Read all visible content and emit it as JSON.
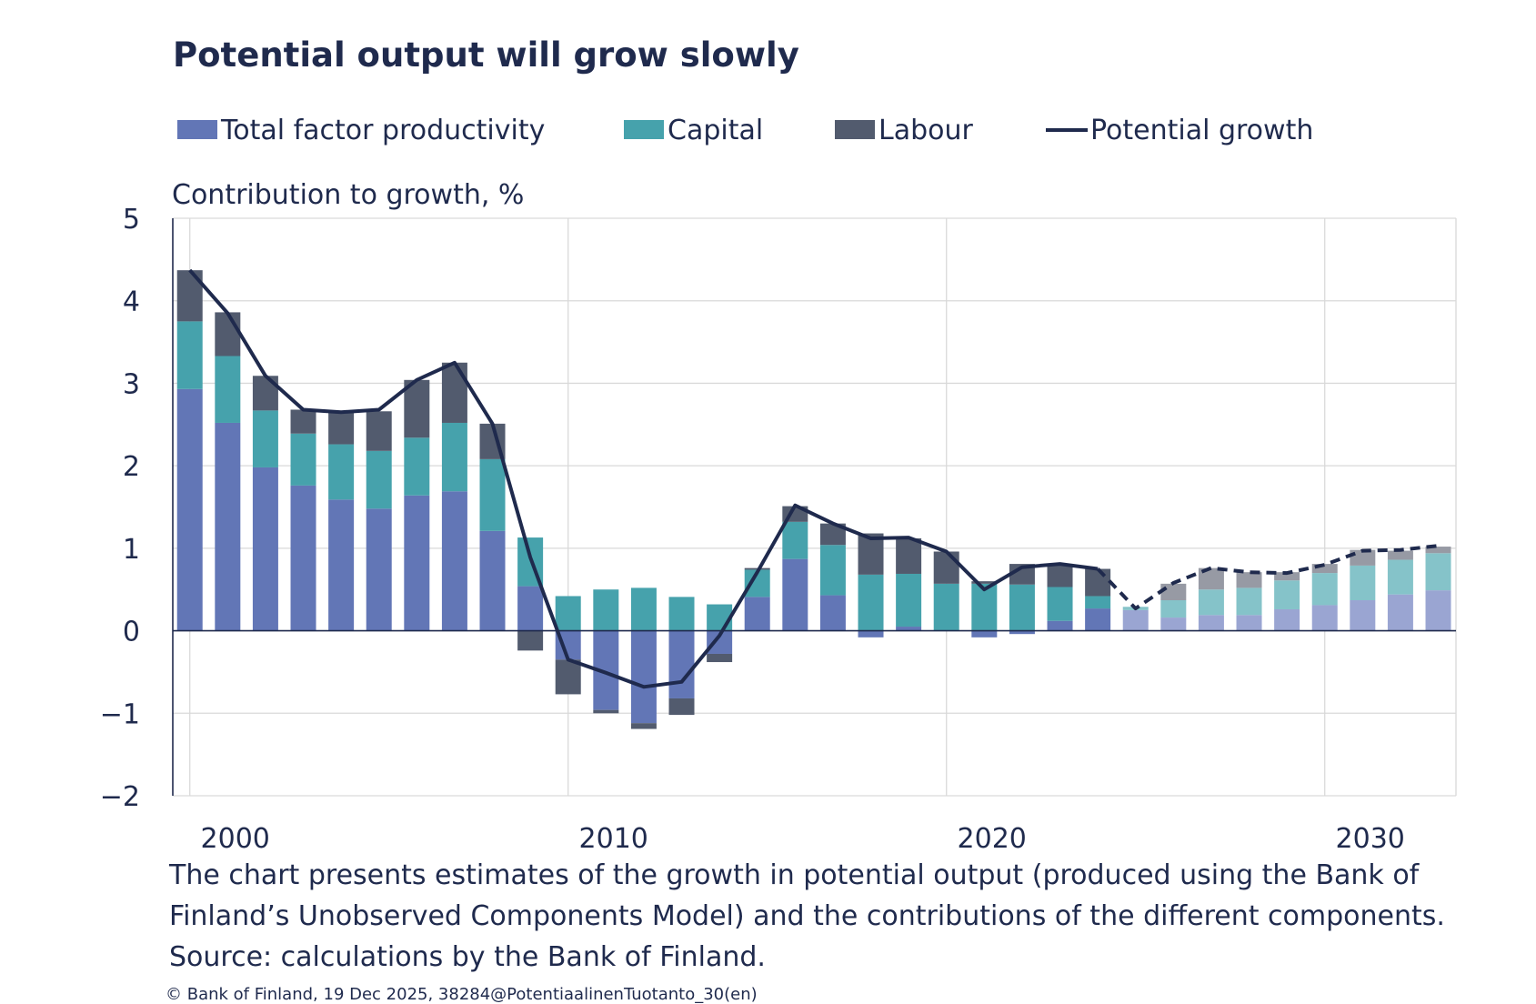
{
  "chart_data": {
    "type": "bar",
    "stacked": true,
    "title": "Potential output will grow slowly",
    "ylabel": "Contribution to growth, %",
    "xlabel": "",
    "ylim": [
      -2,
      5
    ],
    "yticks": [
      5,
      4,
      3,
      2,
      1,
      0,
      -1,
      -2
    ],
    "ytick_labels": [
      "5",
      "4",
      "3",
      "2",
      "1",
      "0",
      "−1",
      "−2"
    ],
    "xticks": [
      {
        "year": 2000,
        "label": "2000"
      },
      {
        "year": 2010,
        "label": "2010"
      },
      {
        "year": 2020,
        "label": "2020"
      },
      {
        "year": 2030,
        "label": "2030"
      }
    ],
    "grid": true,
    "legend_position": "top",
    "forecast_start_year": 2025,
    "years": [
      2000,
      2001,
      2002,
      2003,
      2004,
      2005,
      2006,
      2007,
      2008,
      2009,
      2010,
      2011,
      2012,
      2013,
      2014,
      2015,
      2016,
      2017,
      2018,
      2019,
      2020,
      2021,
      2022,
      2023,
      2024,
      2025,
      2026,
      2027,
      2028,
      2029,
      2030,
      2031,
      2032,
      2033
    ],
    "series": [
      {
        "name": "Total factor productivity",
        "color": "#6276b6",
        "forecast_color": "#9aa5d2",
        "values": [
          2.93,
          2.52,
          1.98,
          1.76,
          1.59,
          1.48,
          1.64,
          1.69,
          1.21,
          0.54,
          -0.35,
          -0.96,
          -1.12,
          -0.82,
          -0.28,
          0.41,
          0.87,
          0.43,
          -0.08,
          0.05,
          0.0,
          -0.08,
          -0.04,
          0.12,
          0.27,
          0.25,
          0.16,
          0.19,
          0.19,
          0.26,
          0.31,
          0.37,
          0.44,
          0.49
        ]
      },
      {
        "name": "Capital",
        "color": "#46a2ac",
        "forecast_color": "#85c3c9",
        "values": [
          0.82,
          0.81,
          0.69,
          0.63,
          0.67,
          0.7,
          0.7,
          0.83,
          0.87,
          0.59,
          0.42,
          0.5,
          0.52,
          0.41,
          0.32,
          0.33,
          0.45,
          0.61,
          0.68,
          0.64,
          0.57,
          0.57,
          0.56,
          0.41,
          0.15,
          0.04,
          0.21,
          0.31,
          0.33,
          0.35,
          0.39,
          0.42,
          0.42,
          0.45
        ]
      },
      {
        "name": "Labour",
        "color": "#525b6e",
        "forecast_color": "#979aa4",
        "values": [
          0.62,
          0.53,
          0.42,
          0.29,
          0.39,
          0.48,
          0.7,
          0.73,
          0.43,
          -0.24,
          -0.42,
          -0.04,
          -0.07,
          -0.2,
          -0.1,
          0.02,
          0.19,
          0.26,
          0.5,
          0.43,
          0.39,
          0.03,
          0.25,
          0.28,
          0.33,
          0.0,
          0.2,
          0.26,
          0.19,
          0.1,
          0.11,
          0.19,
          0.11,
          0.08
        ]
      },
      {
        "name": "Potential growth",
        "type": "line",
        "color": "#1f2a4d",
        "values": [
          4.37,
          3.85,
          3.09,
          2.68,
          2.65,
          2.68,
          3.04,
          3.25,
          2.51,
          0.89,
          -0.35,
          -0.51,
          -0.68,
          -0.62,
          -0.06,
          0.71,
          1.52,
          1.3,
          1.12,
          1.13,
          0.96,
          0.5,
          0.77,
          0.81,
          0.75,
          0.27,
          0.58,
          0.76,
          0.71,
          0.7,
          0.8,
          0.97,
          0.98,
          1.03
        ]
      }
    ]
  },
  "legend": {
    "tfp": "Total factor productivity",
    "capital": "Capital",
    "labour": "Labour",
    "potential": "Potential growth"
  },
  "caption": {
    "line1": "The chart presents estimates of the growth in potential output (produced using the Bank of",
    "line2": "Finland’s Unobserved Components Model) and the contributions of the different components.",
    "line3": "Source: calculations by the Bank of Finland."
  },
  "footer": "© Bank of Finland, 19  Dec 2025, 38284@PotentiaalinenTuotanto_30(en)"
}
